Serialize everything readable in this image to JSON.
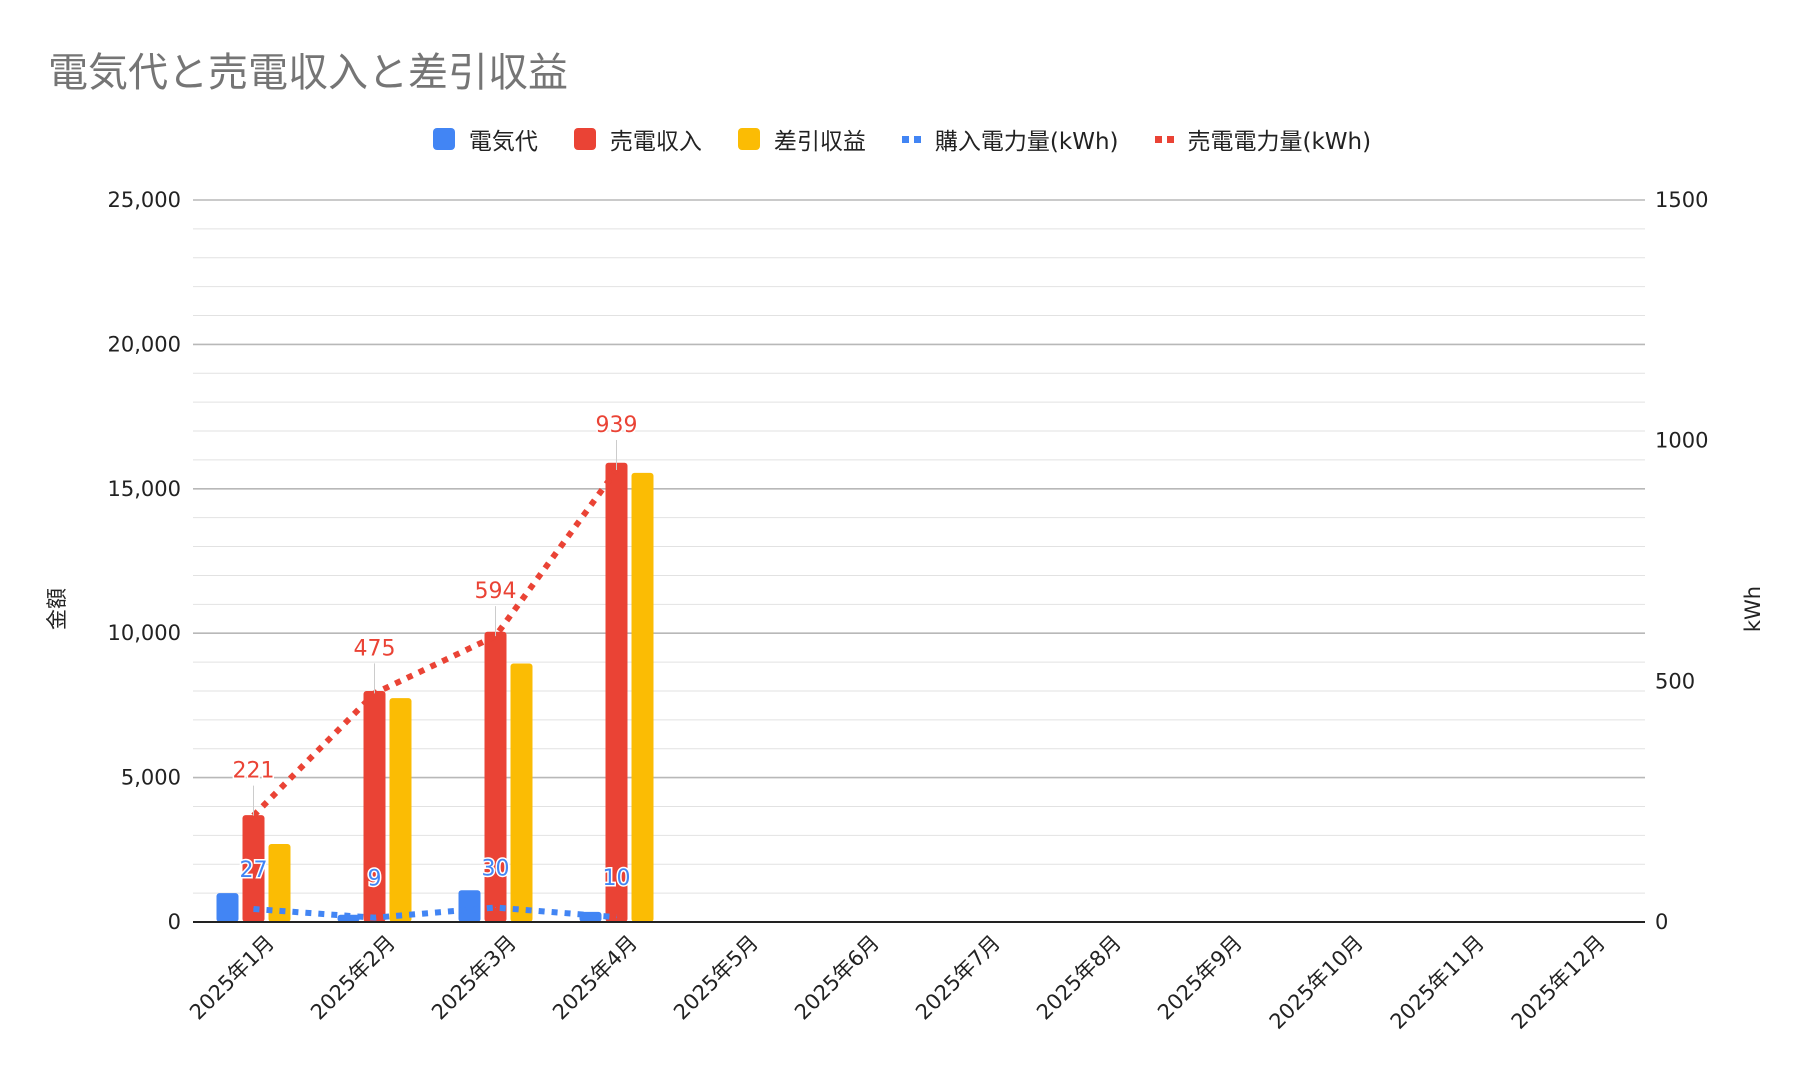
{
  "chart_data": {
    "type": "bar",
    "title": "電気代と売電収入と差引収益",
    "categories": [
      "2025年1月",
      "2025年2月",
      "2025年3月",
      "2025年4月",
      "2025年5月",
      "2025年6月",
      "2025年7月",
      "2025年8月",
      "2025年9月",
      "2025年10月",
      "2025年11月",
      "2025年12月"
    ],
    "series": [
      {
        "name": "電気代",
        "kind": "bar",
        "axis": "left",
        "color": "#4285f4",
        "values": [
          1000,
          250,
          1100,
          350,
          null,
          null,
          null,
          null,
          null,
          null,
          null,
          null
        ]
      },
      {
        "name": "売電収入",
        "kind": "bar",
        "axis": "left",
        "color": "#ea4335",
        "values": [
          3700,
          8000,
          10050,
          15900,
          null,
          null,
          null,
          null,
          null,
          null,
          null,
          null
        ]
      },
      {
        "name": "差引収益",
        "kind": "bar",
        "axis": "left",
        "color": "#fbbc04",
        "values": [
          2700,
          7750,
          8950,
          15550,
          null,
          null,
          null,
          null,
          null,
          null,
          null,
          null
        ]
      },
      {
        "name": "購入電力量(kWh)",
        "kind": "line",
        "style": "dotted",
        "axis": "right",
        "color": "#4285f4",
        "values": [
          27,
          9,
          30,
          10,
          null,
          null,
          null,
          null,
          null,
          null,
          null,
          null
        ],
        "labels": [
          "27",
          "9",
          "30",
          "10"
        ]
      },
      {
        "name": "売電電力量(kWh)",
        "kind": "line",
        "style": "dotted",
        "axis": "right",
        "color": "#ea4335",
        "values": [
          221,
          475,
          594,
          939,
          null,
          null,
          null,
          null,
          null,
          null,
          null,
          null
        ],
        "labels": [
          "221",
          "475",
          "594",
          "939"
        ]
      }
    ],
    "ylabel": "金額",
    "y2label": "kWh",
    "ylim": [
      0,
      25000
    ],
    "yticks": [
      "25,000",
      "20,000",
      "15,000",
      "10,000",
      "5,000",
      "0"
    ],
    "y2lim": [
      0,
      1500
    ],
    "y2ticks": [
      "1500",
      "1000",
      "500",
      "0"
    ],
    "grid": true,
    "legend_position": "top"
  }
}
